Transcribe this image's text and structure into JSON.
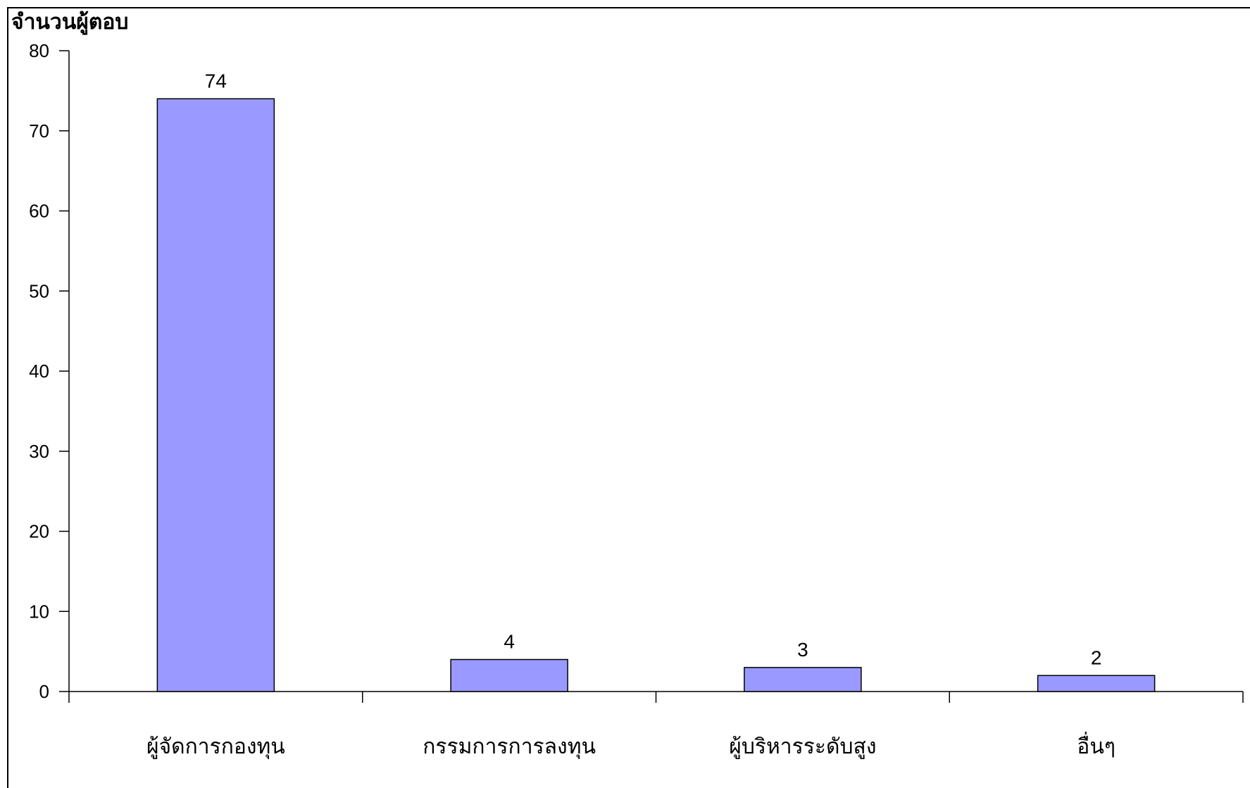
{
  "chart_data": {
    "type": "bar",
    "title": "",
    "ylabel": "จำนวนผู้ตอบ",
    "xlabel": "",
    "categories": [
      "ผู้จัดการกองทุน",
      "กรรมการการลงทุน",
      "ผู้บริหารระดับสูง",
      "อื่นๆ"
    ],
    "values": [
      74,
      4,
      3,
      2
    ],
    "ylim": [
      0,
      80
    ],
    "yticks": [
      0,
      10,
      20,
      30,
      40,
      50,
      60,
      70,
      80
    ],
    "grid": false,
    "legend": "none",
    "bar_color": "#9999ff",
    "show_data_labels": true
  }
}
